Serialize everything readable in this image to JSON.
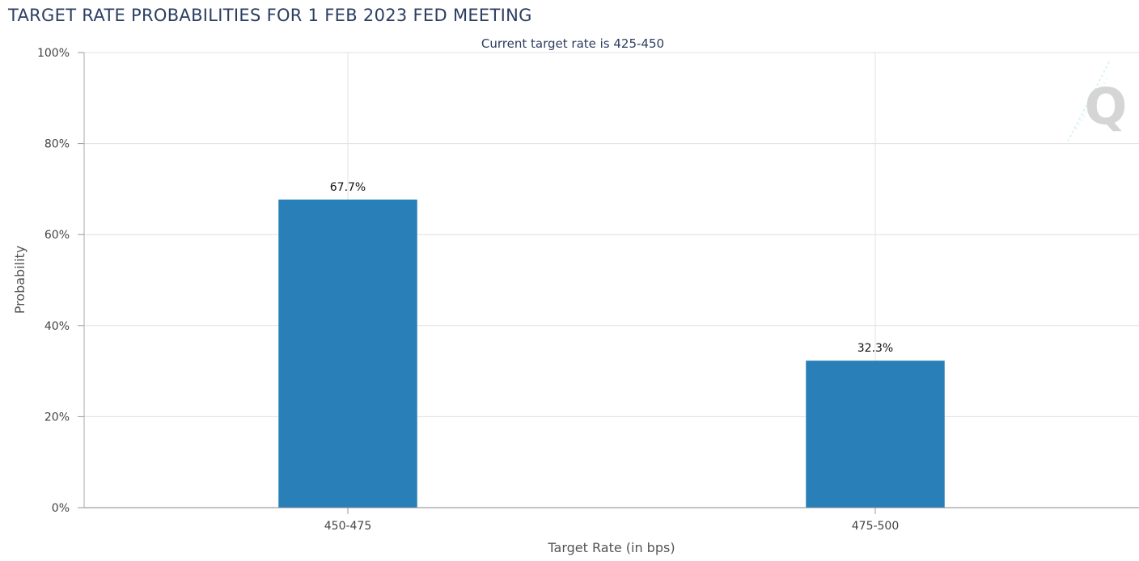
{
  "chart_data": {
    "type": "bar",
    "title": "TARGET RATE PROBABILITIES FOR 1 FEB 2023 FED MEETING",
    "subtitle": "Current target rate is 425-450",
    "xlabel": "Target Rate (in bps)",
    "ylabel": "Probability",
    "categories": [
      "450-475",
      "475-500"
    ],
    "values": [
      67.7,
      32.3
    ],
    "data_labels": [
      "67.7%",
      "32.3%"
    ],
    "ylim": [
      0,
      100
    ],
    "yticks": [
      0,
      20,
      40,
      60,
      80,
      100
    ],
    "ytick_labels": [
      "0%",
      "20%",
      "40%",
      "60%",
      "80%",
      "100%"
    ],
    "grid": true,
    "legend": "none",
    "bar_color": "#2980b9",
    "watermark_letter": "Q"
  }
}
